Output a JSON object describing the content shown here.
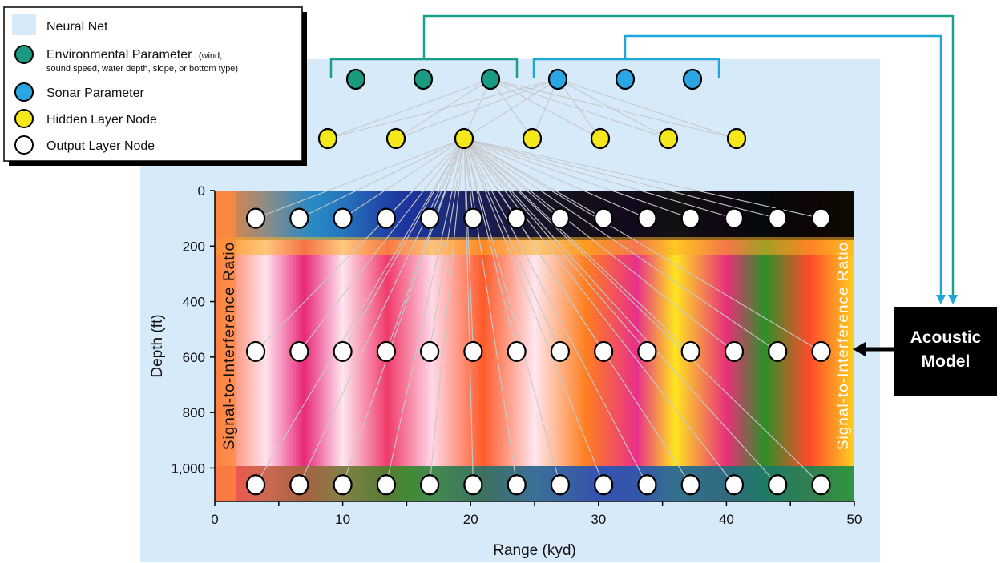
{
  "legend": {
    "items": [
      {
        "label": "Neural Net",
        "sub": ""
      },
      {
        "label": "Environmental Parameter",
        "sub": "(wind,"
      },
      {
        "label": "sound speed, water depth, slope, or bottom type)",
        "sub": ""
      },
      {
        "label": "Sonar Parameter",
        "sub": ""
      },
      {
        "label": "Hidden Layer Node",
        "sub": ""
      },
      {
        "label": "Output Layer Node",
        "sub": ""
      }
    ]
  },
  "colors": {
    "net_background": "#d6eafa",
    "env_node": "#1a9a80",
    "sonar_node": "#29a6e3",
    "hidden_node": "#f5e81a",
    "output_node": "#ffffff",
    "env_bracket": "#1aa08a",
    "sonar_bracket": "#1ea7d8",
    "connection": "#c8c8c8",
    "model_box": "#000000"
  },
  "acoustic_model": {
    "line1": "Acoustic",
    "line2": "Model"
  },
  "side_label": "Signal-to-Interference Ratio",
  "axes": {
    "ylabel": "Depth (ft)",
    "xlabel": "Range (kyd)",
    "y_ticks": [
      "0",
      "200",
      "400",
      "600",
      "800",
      "1,000"
    ],
    "x_ticks": [
      "0",
      "10",
      "20",
      "30",
      "40",
      "50"
    ],
    "xlim": [
      0,
      50
    ],
    "ylim": [
      0,
      1120
    ]
  },
  "network": {
    "env_nodes": 3,
    "sonar_nodes": 3,
    "hidden_nodes": 7,
    "output_x_kyd": [
      3.2,
      6.6,
      10,
      13.4,
      16.8,
      20.2,
      23.6,
      27,
      30.4,
      33.8,
      37.2,
      40.6,
      44,
      47.4
    ],
    "output_depths_ft": [
      100,
      580,
      1060
    ]
  }
}
